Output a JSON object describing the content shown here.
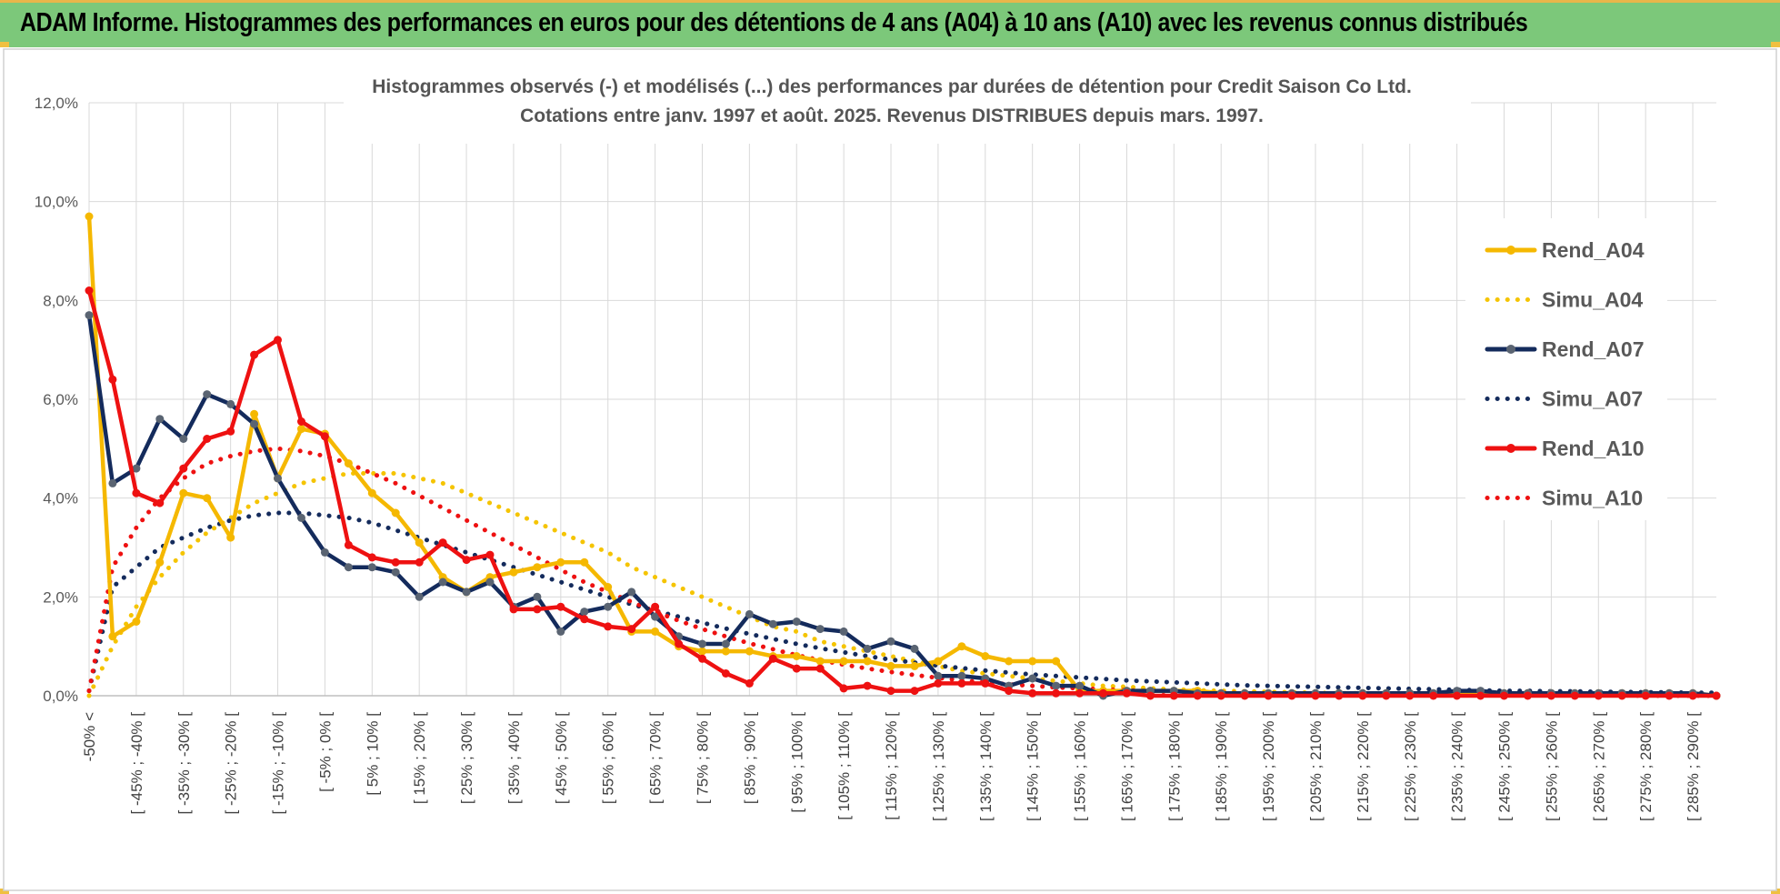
{
  "header": {
    "title": "ADAM Informe. Histogrammes des performances en euros pour des détentions de 4 ans (A04) à 10 ans (A10) avec les revenus connus distribués"
  },
  "chart_data": {
    "type": "line",
    "title": "Histogrammes observés (-) et modélisés (...) des performances par durées de détention pour Credit Saison Co Ltd.",
    "subtitle": "Cotations entre janv. 1997 et août. 2025. Revenus DISTRIBUES depuis mars. 1997.",
    "xlabel": "",
    "ylabel": "",
    "ylim": [
      0,
      12
    ],
    "y_ticks": [
      "0,0%",
      "2,0%",
      "4,0%",
      "6,0%",
      "8,0%",
      "10,0%",
      "12,0%"
    ],
    "grid": true,
    "legend_position": "right",
    "x_tick_labels": [
      "-50% <",
      "[ -45% ; -40% [",
      "[ -35% ; -30% [",
      "[ -25% ; -20% [",
      "[ -15% ; -10% [",
      "[ -5% ; 0% [",
      "[ 5% ; 10% [",
      "[ 15% ; 20% [",
      "[ 25% ; 30% [",
      "[ 35% ; 40% [",
      "[ 45% ; 50% [",
      "[ 55% ; 60% [",
      "[ 65% ; 70% [",
      "[ 75% ; 80% [",
      "[ 85% ; 90% [",
      "[ 95% ; 100% [",
      "[ 105% ; 110% [",
      "[ 115% ; 120% [",
      "[ 125% ; 130% [",
      "[ 135% ; 140% [",
      "[ 145% ; 150% [",
      "[ 155% ; 160% [",
      "[ 165% ; 170% [",
      "[ 175% ; 180% [",
      "[ 185% ; 190% [",
      "[ 195% ; 200% [",
      "[ 205% ; 210% [",
      "[ 215% ; 220% [",
      "[ 225% ; 230% [",
      "[ 235% ; 240% [",
      "[ 245% ; 250% [",
      "[ 255% ; 260% [",
      "[ 265% ; 270% [",
      "[ 275% ; 280% [",
      "[ 285% ; 290% ["
    ],
    "series": [
      {
        "name": "Rend_A04",
        "style": "solid",
        "color": "#f5b800",
        "values": [
          9.7,
          1.2,
          1.5,
          2.7,
          4.1,
          4.0,
          3.2,
          5.7,
          4.4,
          5.4,
          5.3,
          4.7,
          4.1,
          3.7,
          3.1,
          2.4,
          2.1,
          2.4,
          2.5,
          2.6,
          2.7,
          2.7,
          2.2,
          1.3,
          1.3,
          1.0,
          0.9,
          0.9,
          0.9,
          0.8,
          0.8,
          0.7,
          0.7,
          0.7,
          0.6,
          0.6,
          0.7,
          1.0,
          0.8,
          0.7,
          0.7,
          0.7,
          0.1,
          0.1,
          0.1,
          0.1,
          0.1,
          0.1,
          0.05,
          0.05,
          0.05,
          0.05,
          0.05,
          0.05,
          0.05,
          0.05,
          0.05,
          0.05,
          0.05,
          0.05,
          0.05,
          0.05,
          0.05,
          0.05,
          0.05,
          0.05,
          0.05,
          0.05,
          0.05,
          0.0
        ]
      },
      {
        "name": "Simu_A04",
        "style": "dotted",
        "color": "#f5c400",
        "values": [
          0.0,
          1.0,
          1.8,
          2.4,
          2.9,
          3.3,
          3.6,
          3.9,
          4.1,
          4.3,
          4.4,
          4.5,
          4.5,
          4.5,
          4.4,
          4.3,
          4.1,
          3.9,
          3.7,
          3.5,
          3.3,
          3.1,
          2.9,
          2.6,
          2.4,
          2.2,
          2.0,
          1.8,
          1.6,
          1.4,
          1.3,
          1.1,
          1.0,
          0.9,
          0.8,
          0.7,
          0.6,
          0.5,
          0.45,
          0.4,
          0.35,
          0.3,
          0.25,
          0.2,
          0.18,
          0.15,
          0.13,
          0.11,
          0.1,
          0.09,
          0.08,
          0.07,
          0.06,
          0.05,
          0.05,
          0.04,
          0.04,
          0.03,
          0.03,
          0.03,
          0.02,
          0.02,
          0.02,
          0.02,
          0.01,
          0.01,
          0.01,
          0.01,
          0.01,
          0.0
        ]
      },
      {
        "name": "Rend_A07",
        "style": "solid",
        "color": "#142b5c",
        "values": [
          7.7,
          4.3,
          4.6,
          5.6,
          5.2,
          6.1,
          5.9,
          5.5,
          4.4,
          3.6,
          2.9,
          2.6,
          2.6,
          2.5,
          2.0,
          2.3,
          2.1,
          2.3,
          1.8,
          2.0,
          1.3,
          1.7,
          1.8,
          2.1,
          1.6,
          1.2,
          1.05,
          1.05,
          1.65,
          1.45,
          1.5,
          1.35,
          1.3,
          0.95,
          1.1,
          0.95,
          0.4,
          0.4,
          0.35,
          0.2,
          0.35,
          0.2,
          0.2,
          0.0,
          0.1,
          0.1,
          0.1,
          0.05,
          0.05,
          0.05,
          0.05,
          0.05,
          0.05,
          0.05,
          0.05,
          0.05,
          0.05,
          0.05,
          0.1,
          0.1,
          0.05,
          0.05,
          0.05,
          0.05,
          0.05,
          0.05,
          0.05,
          0.05,
          0.05,
          0.0
        ]
      },
      {
        "name": "Simu_A07",
        "style": "dotted",
        "color": "#142b5c",
        "values": [
          0.1,
          2.2,
          2.6,
          3.0,
          3.2,
          3.4,
          3.55,
          3.65,
          3.7,
          3.7,
          3.65,
          3.6,
          3.5,
          3.35,
          3.2,
          3.05,
          2.9,
          2.75,
          2.6,
          2.45,
          2.3,
          2.15,
          2.0,
          1.85,
          1.72,
          1.6,
          1.48,
          1.36,
          1.25,
          1.15,
          1.05,
          0.96,
          0.88,
          0.8,
          0.73,
          0.67,
          0.61,
          0.56,
          0.51,
          0.47,
          0.43,
          0.4,
          0.37,
          0.34,
          0.31,
          0.29,
          0.27,
          0.25,
          0.23,
          0.21,
          0.2,
          0.19,
          0.18,
          0.17,
          0.16,
          0.15,
          0.14,
          0.13,
          0.12,
          0.11,
          0.1,
          0.1,
          0.09,
          0.09,
          0.08,
          0.08,
          0.07,
          0.07,
          0.06,
          0.06
        ]
      },
      {
        "name": "Rend_A10",
        "style": "solid",
        "color": "#ee1111",
        "values": [
          8.2,
          6.4,
          4.1,
          3.9,
          4.6,
          5.2,
          5.35,
          6.9,
          7.2,
          5.55,
          5.25,
          3.05,
          2.8,
          2.7,
          2.7,
          3.1,
          2.75,
          2.85,
          1.75,
          1.75,
          1.8,
          1.55,
          1.4,
          1.35,
          1.8,
          1.05,
          0.75,
          0.45,
          0.25,
          0.75,
          0.55,
          0.55,
          0.15,
          0.2,
          0.1,
          0.1,
          0.25,
          0.25,
          0.25,
          0.1,
          0.05,
          0.05,
          0.05,
          0.05,
          0.05,
          0.0,
          0.0,
          0.0,
          0.0,
          0.0,
          0.0,
          0.0,
          0.0,
          0.0,
          0.0,
          0.0,
          0.0,
          0.0,
          0.0,
          0.0,
          0.0,
          0.0,
          0.0,
          0.0,
          0.0,
          0.0,
          0.0,
          0.0,
          0.0,
          0.0
        ]
      },
      {
        "name": "Simu_A10",
        "style": "dotted",
        "color": "#ee1111",
        "values": [
          0.1,
          2.6,
          3.4,
          4.0,
          4.4,
          4.7,
          4.85,
          4.95,
          5.0,
          4.95,
          4.85,
          4.7,
          4.5,
          4.3,
          4.05,
          3.8,
          3.55,
          3.3,
          3.05,
          2.8,
          2.55,
          2.3,
          2.1,
          1.9,
          1.7,
          1.52,
          1.35,
          1.2,
          1.06,
          0.94,
          0.82,
          0.72,
          0.63,
          0.55,
          0.48,
          0.42,
          0.36,
          0.31,
          0.27,
          0.23,
          0.2,
          0.17,
          0.15,
          0.13,
          0.11,
          0.09,
          0.08,
          0.07,
          0.06,
          0.05,
          0.04,
          0.04,
          0.03,
          0.03,
          0.02,
          0.02,
          0.02,
          0.02,
          0.01,
          0.01,
          0.01,
          0.01,
          0.01,
          0.01,
          0.01,
          0.01,
          0.0,
          0.0,
          0.0,
          0.0
        ]
      }
    ]
  }
}
